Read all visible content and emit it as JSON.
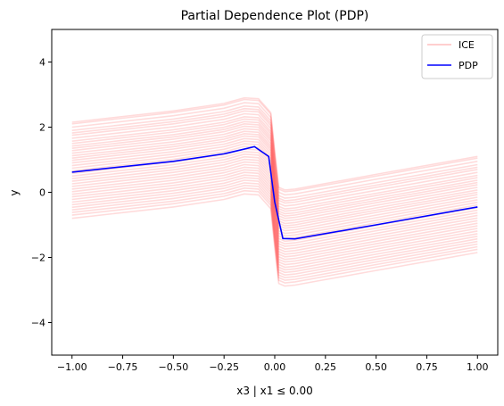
{
  "chart_data": {
    "type": "line",
    "title": "Partial Dependence Plot (PDP)",
    "xlabel": "x3 | x1 ≤ 0.00",
    "ylabel": "y",
    "xlim": [
      -1.1,
      1.1
    ],
    "ylim": [
      -5,
      5
    ],
    "xticks": [
      -1.0,
      -0.75,
      -0.5,
      -0.25,
      0.0,
      0.25,
      0.5,
      0.75,
      1.0
    ],
    "xtick_labels": [
      "−1.00",
      "−0.75",
      "−0.50",
      "−0.25",
      "0.00",
      "0.25",
      "0.50",
      "0.75",
      "1.00"
    ],
    "yticks": [
      -4,
      -2,
      0,
      2,
      4
    ],
    "ytick_labels": [
      "−4",
      "−2",
      "0",
      "2",
      "4"
    ],
    "grid": false,
    "legend": {
      "placement": "top-right",
      "entries": [
        "ICE",
        "PDP"
      ]
    },
    "colors": {
      "ice": "#ff0000",
      "pdp": "#0000ff"
    },
    "pdp": {
      "name": "PDP",
      "x": [
        -1.0,
        -0.5,
        -0.25,
        -0.1,
        -0.03,
        0.0,
        0.04,
        0.1,
        0.5,
        1.0
      ],
      "y": [
        0.62,
        0.95,
        1.18,
        1.4,
        1.1,
        -0.3,
        -1.42,
        -1.43,
        -1.0,
        -0.45
      ]
    },
    "ice": {
      "name": "ICE",
      "shape_x": [
        -1.0,
        -0.5,
        -0.25,
        -0.15,
        -0.08,
        -0.02,
        0.0,
        0.02,
        0.05,
        0.1,
        0.5,
        1.0
      ],
      "shape_y": [
        0.0,
        0.35,
        0.58,
        0.75,
        0.72,
        0.3,
        -0.9,
        -2.0,
        -2.08,
        -2.05,
        -1.6,
        -1.05
      ],
      "offsets": [
        2.15,
        2.1,
        2.0,
        1.9,
        1.82,
        1.75,
        1.66,
        1.57,
        1.5,
        1.42,
        1.35,
        1.28,
        1.2,
        1.12,
        1.05,
        0.98,
        0.9,
        0.82,
        0.74,
        0.66,
        0.58,
        0.5,
        0.42,
        0.34,
        0.26,
        0.18,
        0.1,
        0.02,
        -0.06,
        -0.14,
        -0.22,
        -0.3,
        -0.38,
        -0.46,
        -0.54,
        -0.62,
        -0.7,
        -0.8
      ]
    }
  }
}
